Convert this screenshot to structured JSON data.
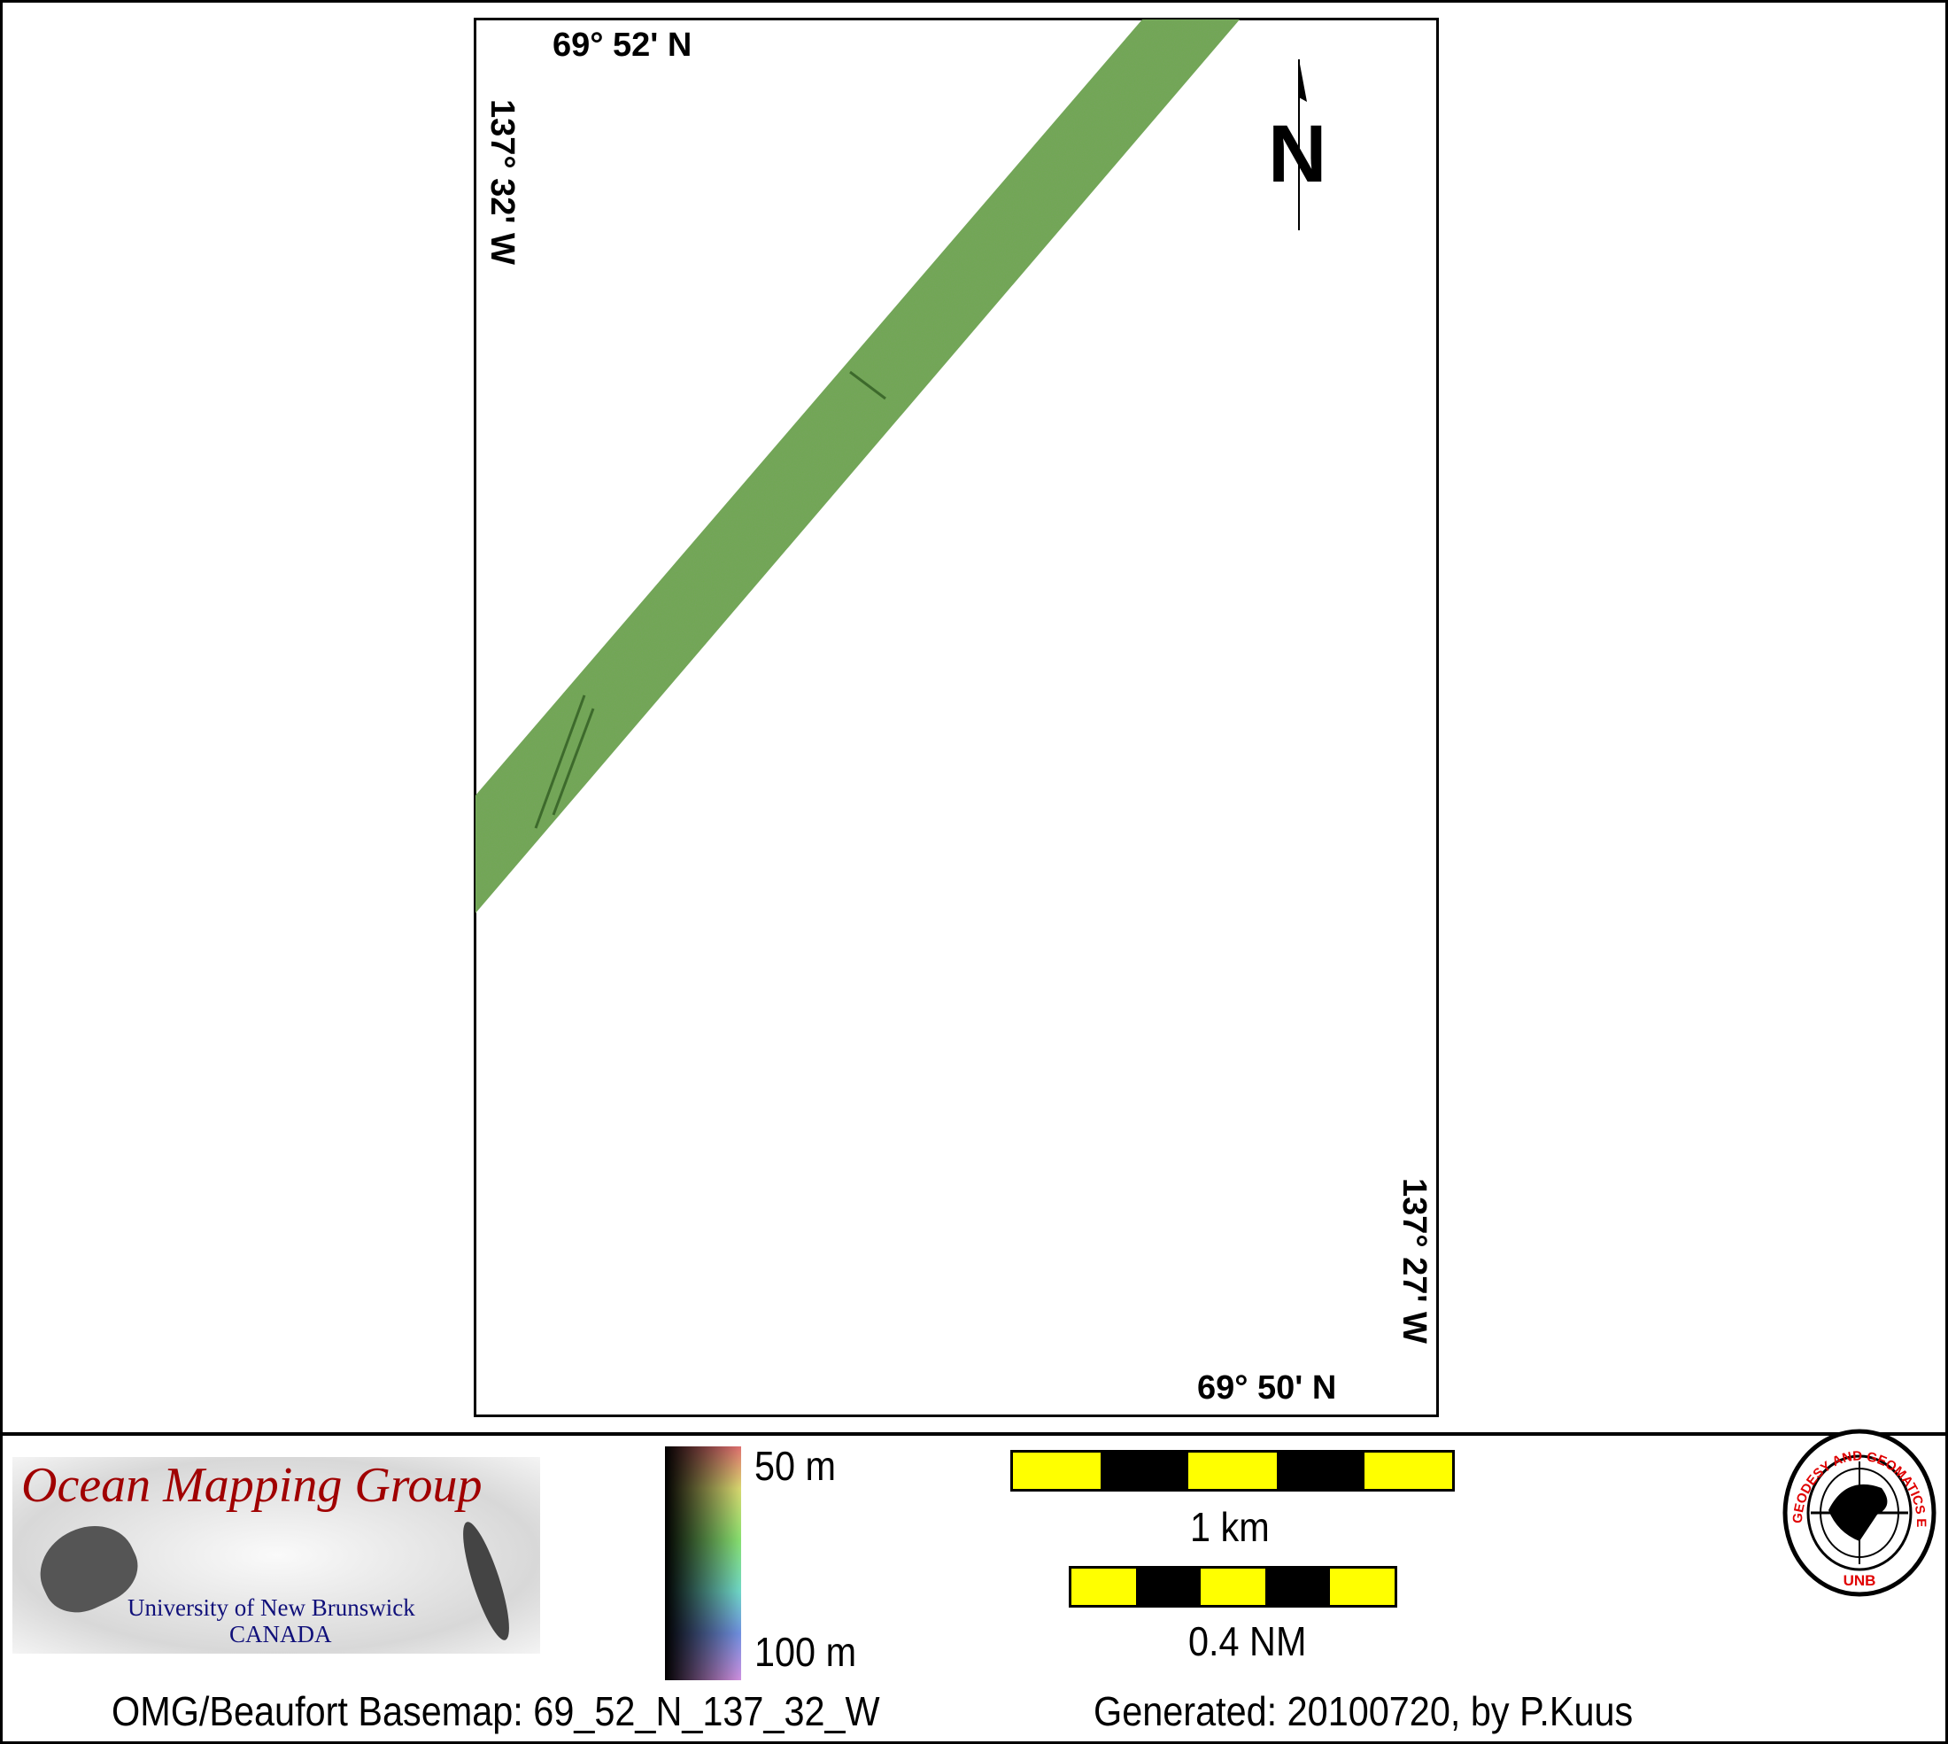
{
  "map": {
    "top_left_lat": "69° 52' N",
    "top_left_lon": "137° 32' W",
    "bottom_right_lat": "69° 50' N",
    "bottom_right_lon": "137° 27' W",
    "north_label": "N",
    "swath_color": "#6fa84f"
  },
  "legend": {
    "logo_title": "Ocean Mapping Group",
    "logo_university": "University of New Brunswick",
    "logo_country": "CANADA",
    "depth_min": "50 m",
    "depth_max": "100 m",
    "scale_km": "1 km",
    "scale_nm": "0.4 NM",
    "scale_colors": [
      "#ffff00",
      "#000000"
    ],
    "seal_text": "GEODESY AND GEOMATICS ENGINEERING",
    "seal_bottom": "UNB"
  },
  "footer": {
    "basemap": "OMG/Beaufort Basemap: 69_52_N_137_32_W",
    "generated": "Generated: 20100720, by P.Kuus"
  }
}
